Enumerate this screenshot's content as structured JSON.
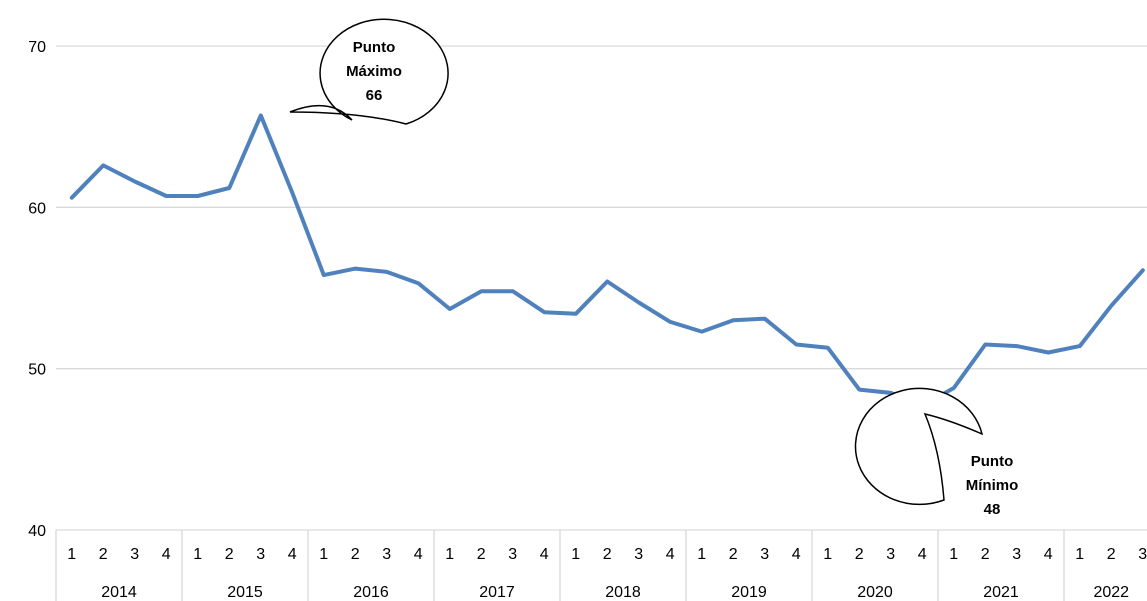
{
  "chart_data": {
    "type": "line",
    "title": "",
    "xlabel": "",
    "ylabel": "",
    "ylim": [
      40,
      70
    ],
    "yticks": [
      "40",
      "50",
      "60",
      "70"
    ],
    "grid": "horizontal",
    "line_color": "#4F81BD",
    "grid_color": "#D9D9D9",
    "years": [
      "2014",
      "2015",
      "2016",
      "2017",
      "2018",
      "2019",
      "2020",
      "2021",
      "2022"
    ],
    "x": [
      "2014-1",
      "2014-2",
      "2014-3",
      "2014-4",
      "2015-1",
      "2015-2",
      "2015-3",
      "2015-4",
      "2016-1",
      "2016-2",
      "2016-3",
      "2016-4",
      "2017-1",
      "2017-2",
      "2017-3",
      "2017-4",
      "2018-1",
      "2018-2",
      "2018-3",
      "2018-4",
      "2019-1",
      "2019-2",
      "2019-3",
      "2019-4",
      "2020-1",
      "2020-2",
      "2020-3",
      "2020-4",
      "2021-1",
      "2021-2",
      "2021-3",
      "2021-4",
      "2022-1",
      "2022-2",
      "2022-3"
    ],
    "quarter_labels": [
      "1",
      "2",
      "3",
      "4",
      "1",
      "2",
      "3",
      "4",
      "1",
      "2",
      "3",
      "4",
      "1",
      "2",
      "3",
      "4",
      "1",
      "2",
      "3",
      "4",
      "1",
      "2",
      "3",
      "4",
      "1",
      "2",
      "3",
      "4",
      "1",
      "2",
      "3",
      "4",
      "1",
      "2",
      "3"
    ],
    "values": [
      60.6,
      62.6,
      61.6,
      60.7,
      60.7,
      61.2,
      65.7,
      60.9,
      55.8,
      56.2,
      56.0,
      55.3,
      53.7,
      54.8,
      54.8,
      53.5,
      53.4,
      55.4,
      54.1,
      52.9,
      52.3,
      53.0,
      53.1,
      51.5,
      51.3,
      48.7,
      48.5,
      47.7,
      48.8,
      51.5,
      51.4,
      51.0,
      51.4,
      53.9,
      56.1
    ],
    "annotations": [
      {
        "lines": [
          "Punto",
          "Máximo",
          "66"
        ],
        "target_index": 6
      },
      {
        "lines": [
          "Punto",
          "Mínimo",
          "48"
        ],
        "target_index": 27
      }
    ]
  }
}
